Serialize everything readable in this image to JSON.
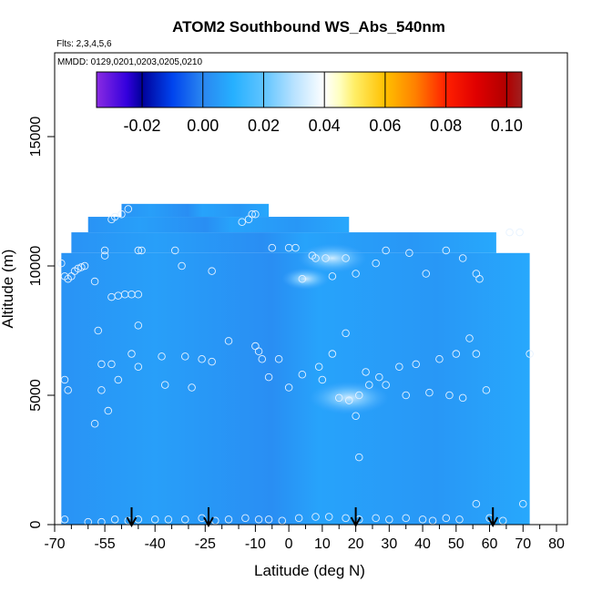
{
  "chart_data": {
    "type": "heatmap",
    "title": "ATOM2 Southbound WS_Abs_540nm",
    "flights_label": "Flts: 2,3,4,5,6",
    "dates_label": "MMDD: 0129,0201,0203,0205,0210",
    "xlabel": "Latitude (deg N)",
    "ylabel": "Altitude (m)",
    "xlim": [
      -70,
      80
    ],
    "ylim": [
      0,
      18000
    ],
    "x_ticks": [
      -70,
      -55,
      -40,
      -25,
      -10,
      0,
      10,
      20,
      30,
      40,
      50,
      60,
      70,
      80
    ],
    "x_tick_labels": [
      "-70",
      "-55",
      "-40",
      "-25",
      "-10",
      "0",
      "10",
      "20",
      "30",
      "40",
      "50",
      "60",
      "70",
      "80"
    ],
    "x_minor_ticks": [
      -65,
      -60,
      -50,
      -45,
      -35,
      -30,
      -20,
      -15,
      -5,
      5,
      15,
      25,
      35,
      45,
      55,
      65,
      75
    ],
    "y_ticks": [
      0,
      5000,
      10000,
      15000
    ],
    "y_tick_labels": [
      "0",
      "5000",
      "10000",
      "15000"
    ],
    "colorbar": {
      "range": [
        -0.035,
        0.105
      ],
      "ticks": [
        -0.02,
        0.0,
        0.02,
        0.04,
        0.06,
        0.08,
        0.1
      ],
      "tick_labels": [
        "-0.02",
        "0.00",
        "0.02",
        "0.04",
        "0.06",
        "0.08",
        "0.10"
      ],
      "stops": [
        {
          "value": -0.035,
          "color": "#8a2be2"
        },
        {
          "value": -0.025,
          "color": "#3300dd"
        },
        {
          "value": -0.02,
          "color": "#00009a"
        },
        {
          "value": -0.01,
          "color": "#0044ee"
        },
        {
          "value": 0.0,
          "color": "#2a86f0"
        },
        {
          "value": 0.01,
          "color": "#26b0ff"
        },
        {
          "value": 0.02,
          "color": "#5fc4ff"
        },
        {
          "value": 0.03,
          "color": "#b8e2ff"
        },
        {
          "value": 0.04,
          "color": "#ffffff"
        },
        {
          "value": 0.045,
          "color": "#ffffc0"
        },
        {
          "value": 0.05,
          "color": "#ffee66"
        },
        {
          "value": 0.06,
          "color": "#ffc000"
        },
        {
          "value": 0.07,
          "color": "#ff8000"
        },
        {
          "value": 0.08,
          "color": "#ff2000"
        },
        {
          "value": 0.09,
          "color": "#e00000"
        },
        {
          "value": 0.1,
          "color": "#b00000"
        },
        {
          "value": 0.105,
          "color": "#a02020"
        }
      ]
    },
    "field_value_typical": 0.005,
    "coverage": [
      {
        "lat_min": -68,
        "lat_max": 72,
        "alt_min": 0,
        "alt_max": 10500
      },
      {
        "lat_min": -65,
        "lat_max": 62,
        "alt_min": 10500,
        "alt_max": 11300
      },
      {
        "lat_min": -60,
        "lat_max": 18,
        "alt_min": 11300,
        "alt_max": 11900
      },
      {
        "lat_min": -50,
        "lat_max": -6,
        "alt_min": 11900,
        "alt_max": 12400
      }
    ],
    "enhanced_regions": [
      {
        "lat": 13,
        "alt": 10300,
        "value": 0.025
      },
      {
        "lat": 18,
        "alt": 4900,
        "value": 0.03
      },
      {
        "lat": 5,
        "alt": 9500,
        "value": 0.015
      }
    ],
    "samples": [
      [
        -68,
        10100
      ],
      [
        -67,
        9600
      ],
      [
        -66,
        9500
      ],
      [
        -65,
        9600
      ],
      [
        -64,
        9800
      ],
      [
        -63,
        9900
      ],
      [
        -62,
        9950
      ],
      [
        -61,
        10000
      ],
      [
        -55,
        10600
      ],
      [
        -55,
        10400
      ],
      [
        -53,
        11800
      ],
      [
        -52,
        11900
      ],
      [
        -50,
        12000
      ],
      [
        -48,
        12200
      ],
      [
        -58,
        9400
      ],
      [
        -53,
        8800
      ],
      [
        -51,
        8850
      ],
      [
        -49,
        8900
      ],
      [
        -47,
        8900
      ],
      [
        -45,
        8900
      ],
      [
        -45,
        10600
      ],
      [
        -44,
        10600
      ],
      [
        -34,
        10600
      ],
      [
        -32,
        10000
      ],
      [
        -23,
        9800
      ],
      [
        -14,
        11700
      ],
      [
        -12,
        11800
      ],
      [
        -11,
        12000
      ],
      [
        -10,
        12000
      ],
      [
        -5,
        10700
      ],
      [
        0,
        10700
      ],
      [
        2,
        10700
      ],
      [
        4,
        9500
      ],
      [
        7,
        10400
      ],
      [
        8,
        10300
      ],
      [
        11,
        10300
      ],
      [
        13,
        9600
      ],
      [
        17,
        10300
      ],
      [
        20,
        9700
      ],
      [
        26,
        10100
      ],
      [
        29,
        10600
      ],
      [
        36,
        10500
      ],
      [
        41,
        9700
      ],
      [
        47,
        10600
      ],
      [
        52,
        10300
      ],
      [
        56,
        9700
      ],
      [
        57,
        9500
      ],
      [
        66,
        11300
      ],
      [
        69,
        11300
      ],
      [
        -67,
        5600
      ],
      [
        -66,
        5200
      ],
      [
        -57,
        7500
      ],
      [
        -56,
        6200
      ],
      [
        -56,
        5200
      ],
      [
        -54,
        4400
      ],
      [
        -53,
        6200
      ],
      [
        -51,
        5600
      ],
      [
        -47,
        6600
      ],
      [
        -45,
        7700
      ],
      [
        -45,
        6100
      ],
      [
        -38,
        6500
      ],
      [
        -37,
        5400
      ],
      [
        -31,
        6500
      ],
      [
        -29,
        5300
      ],
      [
        -26,
        6400
      ],
      [
        -23,
        6300
      ],
      [
        -18,
        7100
      ],
      [
        -10,
        6900
      ],
      [
        -9,
        6700
      ],
      [
        -8,
        6400
      ],
      [
        -6,
        5700
      ],
      [
        -3,
        6400
      ],
      [
        0,
        5300
      ],
      [
        4,
        5800
      ],
      [
        9,
        6100
      ],
      [
        10,
        5600
      ],
      [
        13,
        6600
      ],
      [
        15,
        4900
      ],
      [
        17,
        7400
      ],
      [
        18,
        4800
      ],
      [
        20,
        4200
      ],
      [
        21,
        5000
      ],
      [
        23,
        5900
      ],
      [
        24,
        5400
      ],
      [
        27,
        5700
      ],
      [
        29,
        5400
      ],
      [
        33,
        6100
      ],
      [
        35,
        5000
      ],
      [
        38,
        6200
      ],
      [
        42,
        5100
      ],
      [
        45,
        6400
      ],
      [
        48,
        5000
      ],
      [
        50,
        6600
      ],
      [
        52,
        4900
      ],
      [
        54,
        7200
      ],
      [
        56,
        6600
      ],
      [
        59,
        5200
      ],
      [
        72,
        6600
      ],
      [
        -58,
        3900
      ],
      [
        21,
        2600
      ],
      [
        -67,
        200
      ],
      [
        -60,
        100
      ],
      [
        -56,
        100
      ],
      [
        -52,
        200
      ],
      [
        -48,
        150
      ],
      [
        -45,
        200
      ],
      [
        -40,
        200
      ],
      [
        -36,
        200
      ],
      [
        -31,
        200
      ],
      [
        -26,
        250
      ],
      [
        -22,
        150
      ],
      [
        -18,
        200
      ],
      [
        -13,
        250
      ],
      [
        -9,
        200
      ],
      [
        -6,
        200
      ],
      [
        -2,
        150
      ],
      [
        3,
        250
      ],
      [
        8,
        300
      ],
      [
        12,
        300
      ],
      [
        17,
        250
      ],
      [
        21,
        200
      ],
      [
        26,
        250
      ],
      [
        30,
        200
      ],
      [
        35,
        250
      ],
      [
        40,
        200
      ],
      [
        43,
        150
      ],
      [
        47,
        250
      ],
      [
        51,
        200
      ],
      [
        56,
        800
      ],
      [
        60,
        250
      ],
      [
        64,
        150
      ],
      [
        70,
        800
      ]
    ],
    "marker_latitudes": [
      -47,
      -24,
      20,
      61
    ]
  }
}
